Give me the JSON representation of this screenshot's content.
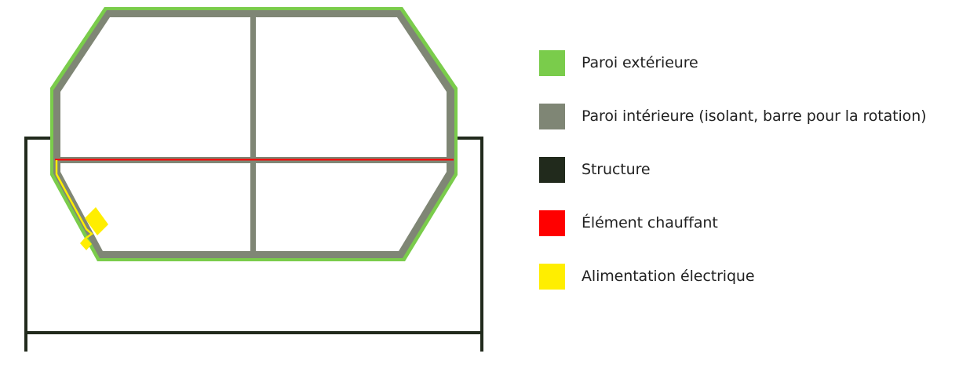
{
  "colors": {
    "outer_wall": "#7ACC4B",
    "inner_wall": "#7F8675",
    "structure": "#212A1C",
    "heating": "#FF0000",
    "power": "#FFEE00"
  },
  "legend": {
    "items": [
      {
        "label": "Paroi extérieure",
        "color": "#7ACC4B"
      },
      {
        "label": "Paroi intérieure (isolant, barre pour la rotation)",
        "color": "#7F8675"
      },
      {
        "label": "Structure",
        "color": "#212A1C"
      },
      {
        "label": "Élément chauffant",
        "color": "#FF0000"
      },
      {
        "label": "Alimentation électrique",
        "color": "#FFEE00"
      }
    ]
  }
}
